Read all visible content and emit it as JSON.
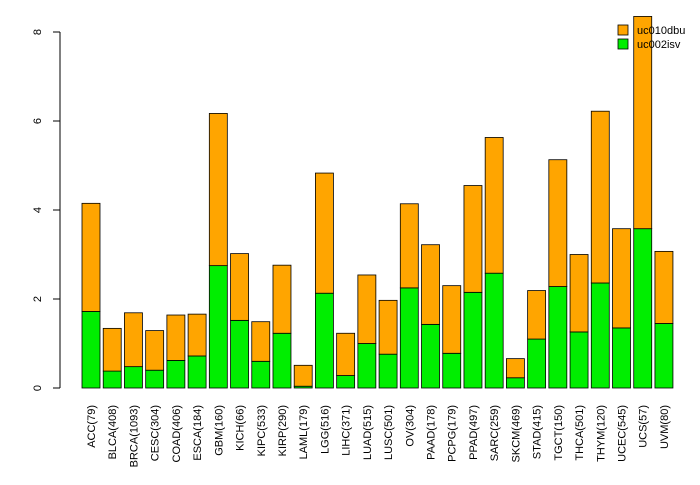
{
  "chart_data": {
    "type": "bar",
    "stacked": true,
    "categories": [
      "ACC(79)",
      "BLCA(408)",
      "BRCA(1093)",
      "CESC(304)",
      "COAD(406)",
      "ESCA(184)",
      "GBM(160)",
      "KICH(66)",
      "KIPC(533)",
      "KIRP(290)",
      "LAML(179)",
      "LGG(516)",
      "LIHC(371)",
      "LUAD(515)",
      "LUSC(501)",
      "OV(304)",
      "PAAD(178)",
      "PCPG(179)",
      "PPAD(497)",
      "SARC(259)",
      "SKCM(469)",
      "STAD(415)",
      "TGCT(150)",
      "THCA(501)",
      "THYM(120)",
      "UCEC(545)",
      "UCS(57)",
      "UVM(80)"
    ],
    "series": [
      {
        "name": "uc002isv",
        "color": "#00ee00",
        "values": [
          1.72,
          0.38,
          0.48,
          0.4,
          0.62,
          0.72,
          2.75,
          1.52,
          0.6,
          1.23,
          0.04,
          2.13,
          0.28,
          1.0,
          0.76,
          2.25,
          1.43,
          0.78,
          2.15,
          2.58,
          0.23,
          1.1,
          2.28,
          1.26,
          2.36,
          1.35,
          3.58,
          1.45
        ]
      },
      {
        "name": "uc010dbu",
        "color": "#ffa500",
        "values": [
          2.43,
          0.96,
          1.21,
          0.89,
          1.02,
          0.94,
          3.42,
          1.5,
          0.89,
          1.53,
          0.47,
          2.7,
          0.95,
          1.54,
          1.21,
          1.89,
          1.79,
          1.52,
          2.4,
          3.05,
          0.43,
          1.09,
          2.85,
          1.74,
          3.86,
          2.23,
          4.77,
          1.62
        ]
      }
    ],
    "yticks": [
      0,
      2,
      4,
      6,
      8
    ],
    "ylim": [
      0,
      8.35
    ],
    "grid": false,
    "legend_position": "top-right"
  }
}
